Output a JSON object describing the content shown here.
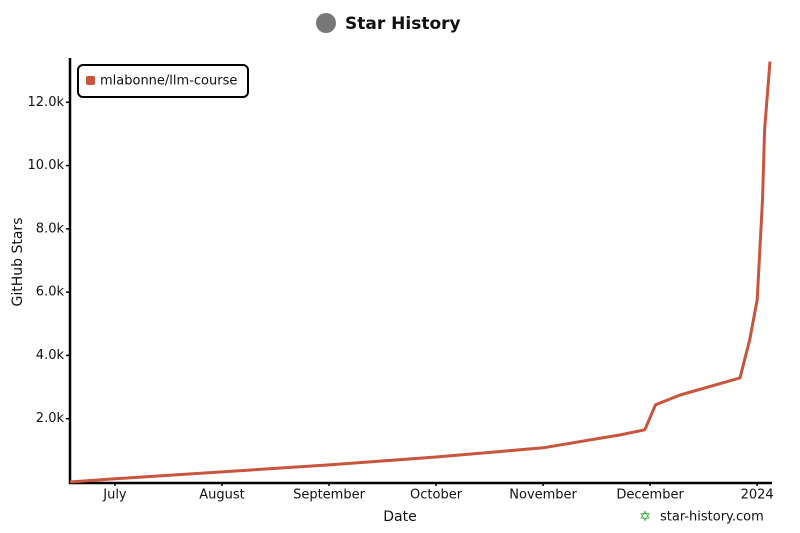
{
  "chart_data": {
    "type": "line",
    "title": "Star History",
    "xlabel": "Date",
    "ylabel": "GitHub Stars",
    "watermark": "star-history.com",
    "legend": "top-left",
    "xlim": [
      -0.42,
      6.12
    ],
    "xticks": [
      {
        "value": 0,
        "label": "July"
      },
      {
        "value": 1,
        "label": "August"
      },
      {
        "value": 2,
        "label": "September"
      },
      {
        "value": 3,
        "label": "October"
      },
      {
        "value": 4,
        "label": "November"
      },
      {
        "value": 5,
        "label": "December"
      },
      {
        "value": 6,
        "label": "2024"
      }
    ],
    "ylim": [
      0,
      13400
    ],
    "yticks": [
      {
        "value": 2000,
        "label": "2.0k"
      },
      {
        "value": 4000,
        "label": "4.0k"
      },
      {
        "value": 6000,
        "label": "6.0k"
      },
      {
        "value": 8000,
        "label": "8.0k"
      },
      {
        "value": 10000,
        "label": "10.0k"
      },
      {
        "value": 12000,
        "label": "12.0k"
      }
    ],
    "series": [
      {
        "name": "mlabonne/llm-course",
        "color": "#c8553d",
        "x": [
          -0.42,
          0,
          1,
          2,
          3,
          4,
          4.72,
          4.95,
          5.05,
          5.28,
          5.84,
          5.93,
          6.0,
          6.05,
          6.07,
          6.12
        ],
        "values": [
          0,
          100,
          320,
          540,
          790,
          1080,
          1490,
          1650,
          2440,
          2750,
          3290,
          4490,
          5760,
          8920,
          11140,
          13290
        ]
      }
    ]
  }
}
